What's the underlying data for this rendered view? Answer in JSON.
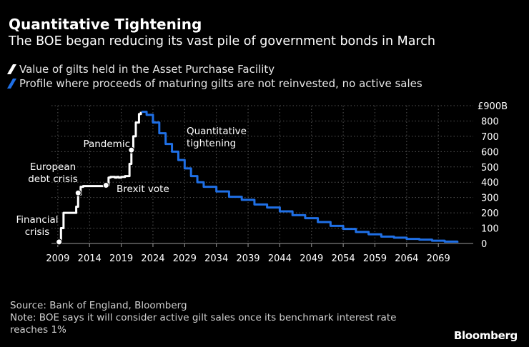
{
  "title": "Quantitative Tightening",
  "subtitle": "The BOE began reducing its vast pile of government bonds in March",
  "legend": [
    {
      "label": "Value of gilts held in the Asset Purchase Facility",
      "color": "#ffffff"
    },
    {
      "label": "Profile where proceeds of maturing gilts are not reinvested, no active sales",
      "color": "#1f6fe5"
    }
  ],
  "chart_data": {
    "type": "line",
    "title": "Quantitative Tightening",
    "xlabel": "",
    "ylabel": "",
    "xlim": [
      2008.0,
      2074.5
    ],
    "ylim": [
      0,
      900
    ],
    "y_unit_label": "£900B",
    "x_ticks": [
      2009,
      2014,
      2019,
      2024,
      2029,
      2034,
      2039,
      2044,
      2049,
      2054,
      2059,
      2064,
      2069
    ],
    "x_tick_labels": [
      "2009",
      "2014",
      "2019",
      "2024",
      "2029",
      "2034",
      "2039",
      "2044",
      "2049",
      "2054",
      "2059",
      "2064",
      "2069"
    ],
    "y_ticks": [
      0,
      100,
      200,
      300,
      400,
      500,
      600,
      700,
      800
    ],
    "y_tick_labels": [
      "0",
      "100",
      "200",
      "300",
      "400",
      "500",
      "600",
      "700",
      "800"
    ],
    "series": [
      {
        "name": "Value of gilts held in the Asset Purchase Facility",
        "color": "#ffffff",
        "x": [
          2009.2,
          2009.5,
          2009.9,
          2010.5,
          2011.5,
          2011.9,
          2012.2,
          2012.6,
          2013.0,
          2015.5,
          2016.3,
          2016.6,
          2017.0,
          2017.3,
          2018.0,
          2018.3,
          2018.6,
          2019.0,
          2019.6,
          2020.1,
          2020.3,
          2020.6,
          2020.9,
          2021.3,
          2021.8,
          2022.1
        ],
        "y": [
          10,
          100,
          200,
          200,
          200,
          240,
          320,
          370,
          375,
          375,
          375,
          380,
          430,
          435,
          430,
          435,
          430,
          435,
          440,
          440,
          520,
          610,
          700,
          790,
          845,
          860
        ]
      },
      {
        "name": "Profile where proceeds of maturing gilts are not reinvested, no active sales",
        "color": "#1f6fe5",
        "x": [
          2022.2,
          2023.0,
          2024.0,
          2025.0,
          2026.0,
          2027.0,
          2028.0,
          2029.0,
          2030.0,
          2031.0,
          2032.0,
          2034.0,
          2036.0,
          2038.0,
          2040.0,
          2042.0,
          2044.0,
          2046.0,
          2048.0,
          2050.0,
          2052.0,
          2054.0,
          2056.0,
          2058.0,
          2060.0,
          2062.0,
          2064.0,
          2066.0,
          2068.0,
          2070.0,
          2072.0
        ],
        "y": [
          860,
          840,
          790,
          720,
          650,
          600,
          545,
          490,
          440,
          400,
          370,
          340,
          305,
          285,
          255,
          235,
          210,
          185,
          165,
          140,
          115,
          95,
          75,
          60,
          45,
          38,
          30,
          25,
          18,
          12,
          5
        ]
      }
    ],
    "markers": [
      {
        "x": 2009.2,
        "y": 10,
        "label": "Financial crisis"
      },
      {
        "x": 2012.2,
        "y": 330,
        "label": "European debt crisis"
      },
      {
        "x": 2016.6,
        "y": 380,
        "label": "Brexit vote"
      },
      {
        "x": 2020.6,
        "y": 610,
        "label": "Pandemic"
      }
    ],
    "annotations": [
      {
        "text": "Quantitative tightening",
        "x": 2029.3,
        "y": 700
      }
    ]
  },
  "annotation_lines": {
    "financial": [
      "Financial",
      "crisis"
    ],
    "european": [
      "European",
      "debt crisis"
    ],
    "brexit": [
      "Brexit vote"
    ],
    "pandemic": [
      "Pandemic"
    ],
    "qt": [
      "Quantitative",
      "tightening"
    ]
  },
  "source": "Source: Bank of England, Bloomberg",
  "note_lines": [
    "Note: BOE says it will consider active gilt sales once its benchmark interest rate",
    "reaches 1%"
  ],
  "brand": "Bloomberg"
}
